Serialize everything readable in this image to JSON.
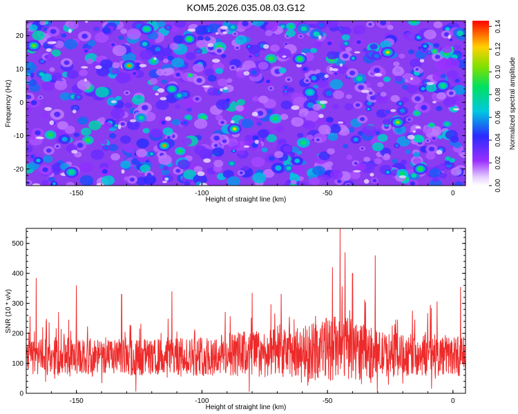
{
  "title": "KOM5.2026.035.08.03.G12",
  "colors": {
    "line": "#ee2a2a",
    "axis": "#000000"
  },
  "chart_data": [
    {
      "type": "heatmap",
      "title": "KOM5.2026.035.08.03.G12",
      "xlabel": "Height of straight line (km)",
      "ylabel": "Frequency (Hz)",
      "xlim": [
        -170,
        5
      ],
      "ylim": [
        -25,
        24.5
      ],
      "xticks": [
        -150,
        -100,
        -50,
        0
      ],
      "yticks": [
        -20,
        -10,
        0,
        10,
        20
      ],
      "colorbar": {
        "label": "Normalized spectral amplitude",
        "range": [
          0,
          0.145
        ],
        "ticks": [
          0.0,
          0.02,
          0.04,
          0.06,
          0.08,
          0.1,
          0.12,
          0.14
        ],
        "tick_labels": [
          "0.00",
          "0.02",
          "0.04",
          "0.06",
          "0.08",
          "0.10",
          "0.12",
          "0.14"
        ]
      },
      "hotspots": [
        {
          "x": -167,
          "y": 17,
          "v": 0.1
        },
        {
          "x": -129,
          "y": 11,
          "v": 0.13
        },
        {
          "x": -122,
          "y": 22,
          "v": 0.08
        },
        {
          "x": -115,
          "y": -13,
          "v": 0.13
        },
        {
          "x": -105,
          "y": 19,
          "v": 0.09
        },
        {
          "x": -87,
          "y": -8,
          "v": 0.12
        },
        {
          "x": -61,
          "y": 13,
          "v": 0.09
        },
        {
          "x": -26,
          "y": 15,
          "v": 0.12
        },
        {
          "x": -22,
          "y": -6,
          "v": 0.11
        },
        {
          "x": -13,
          "y": -20,
          "v": 0.09
        },
        {
          "x": -4,
          "y": 5,
          "v": 0.08
        },
        {
          "x": -112,
          "y": 4,
          "v": 0.08
        },
        {
          "x": -57,
          "y": 3,
          "v": 0.07
        },
        {
          "x": -152,
          "y": -21,
          "v": 0.08
        }
      ]
    },
    {
      "type": "line",
      "xlabel": "Height of straight line (km)",
      "ylabel": "SNR (10 * v/v)",
      "xlim": [
        -170,
        5
      ],
      "ylim": [
        0,
        550
      ],
      "xticks": [
        -150,
        -100,
        -50,
        0
      ],
      "yticks": [
        0,
        100,
        200,
        300,
        400,
        500
      ],
      "series": [
        {
          "name": "SNR",
          "baseline": 120,
          "peaks": [
            {
              "x": -166,
              "y": 385
            },
            {
              "x": -150,
              "y": 360
            },
            {
              "x": -132,
              "y": 330
            },
            {
              "x": -112,
              "y": 340
            },
            {
              "x": -80,
              "y": 335
            },
            {
              "x": -48,
              "y": 420
            },
            {
              "x": -45,
              "y": 550
            },
            {
              "x": -43,
              "y": 470
            },
            {
              "x": -31,
              "y": 460
            },
            {
              "x": -40,
              "y": 400
            },
            {
              "x": 3,
              "y": 355
            }
          ]
        }
      ]
    }
  ]
}
